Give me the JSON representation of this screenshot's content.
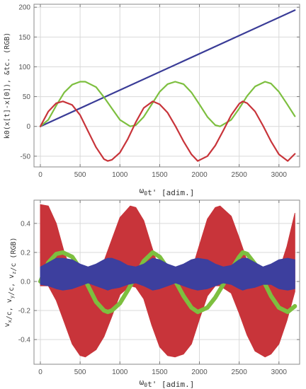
{
  "chart_data": [
    {
      "type": "line",
      "xlabel": "ω0t' [adim.]",
      "ylabel": "k0(x[t]-x[0]), &tc. (RGB)",
      "xlim": [
        -80,
        3260
      ],
      "ylim": [
        -68,
        205
      ],
      "xticks": [
        0,
        500,
        1000,
        1500,
        2000,
        2500,
        3000
      ],
      "yticks": [
        -50,
        0,
        50,
        100,
        150,
        200
      ],
      "grid": true,
      "series": [
        {
          "color": "#3a3c97",
          "x": [
            0,
            3200
          ],
          "y": [
            0,
            195
          ]
        },
        {
          "color": "#7dbf3f",
          "x": [
            0,
            100,
            200,
            300,
            400,
            500,
            565,
            700,
            800,
            900,
            1000,
            1130,
            1200,
            1300,
            1400,
            1500,
            1600,
            1695,
            1800,
            1900,
            2000,
            2100,
            2200,
            2260,
            2400,
            2500,
            2600,
            2700,
            2825,
            2900,
            3000,
            3100,
            3200
          ],
          "y": [
            0,
            11,
            35,
            57,
            70,
            75,
            75,
            66,
            49,
            30,
            11,
            0,
            2,
            16,
            37,
            58,
            71,
            75,
            71,
            57,
            37,
            16,
            2,
            0,
            11,
            30,
            51,
            67,
            75,
            72,
            58,
            38,
            17
          ]
        },
        {
          "color": "#c8343a",
          "x": [
            0,
            100,
            200,
            283,
            400,
            500,
            600,
            700,
            800,
            848,
            900,
            1000,
            1100,
            1200,
            1300,
            1413,
            1500,
            1600,
            1700,
            1800,
            1900,
            1978,
            2100,
            2200,
            2300,
            2400,
            2500,
            2545,
            2600,
            2700,
            2800,
            2900,
            3000,
            3110,
            3200
          ],
          "y": [
            0,
            25,
            39,
            42,
            36,
            19,
            -8,
            -35,
            -55,
            -58,
            -56,
            -44,
            -21,
            7,
            31,
            42,
            37,
            23,
            0,
            -25,
            -47,
            -58,
            -50,
            -32,
            -7,
            19,
            38,
            42,
            39,
            25,
            1,
            -25,
            -47,
            -58,
            -46
          ]
        }
      ]
    },
    {
      "type": "area",
      "xlabel": "ω0t' [adim.]",
      "ylabel": "vx/c, vy/c, vz/c (RGB)",
      "xlim": [
        -80,
        3260
      ],
      "ylim": [
        -0.57,
        0.56
      ],
      "xticks": [
        0,
        500,
        1000,
        1500,
        2000,
        2500,
        3000
      ],
      "yticks": [
        -0.4,
        -0.2,
        0.0,
        0.2,
        0.4
      ],
      "grid": true,
      "series": [
        {
          "color": "#c8343a",
          "x": [
            0,
            100,
            200,
            300,
            400,
            500,
            565,
            700,
            800,
            900,
            1000,
            1130,
            1200,
            1300,
            1400,
            1500,
            1600,
            1695,
            1800,
            1900,
            2000,
            2100,
            2200,
            2260,
            2400,
            2500,
            2600,
            2700,
            2825,
            2900,
            3000,
            3100,
            3200
          ],
          "upper": [
            0.53,
            0.52,
            0.4,
            0.2,
            0.06,
            -0.01,
            -0.02,
            0.04,
            0.14,
            0.29,
            0.44,
            0.52,
            0.51,
            0.42,
            0.24,
            0.07,
            -0.01,
            -0.02,
            0.0,
            0.07,
            0.25,
            0.43,
            0.51,
            0.52,
            0.45,
            0.3,
            0.14,
            0.03,
            -0.02,
            0.0,
            0.07,
            0.24,
            0.47
          ],
          "lower": [
            -0.03,
            -0.03,
            -0.13,
            -0.28,
            -0.43,
            -0.51,
            -0.52,
            -0.47,
            -0.38,
            -0.24,
            -0.09,
            -0.03,
            -0.04,
            -0.12,
            -0.3,
            -0.45,
            -0.51,
            -0.52,
            -0.5,
            -0.43,
            -0.26,
            -0.1,
            -0.03,
            -0.03,
            -0.08,
            -0.22,
            -0.37,
            -0.48,
            -0.52,
            -0.5,
            -0.43,
            -0.27,
            -0.07
          ]
        },
        {
          "color": "#7dbf3f",
          "x": [
            0,
            100,
            200,
            283,
            400,
            500,
            600,
            700,
            800,
            848,
            900,
            1000,
            1100,
            1200,
            1300,
            1413,
            1500,
            1600,
            1700,
            1800,
            1900,
            1978,
            2100,
            2200,
            2300,
            2400,
            2500,
            2545,
            2600,
            2700,
            2800,
            2900,
            3000,
            3110,
            3200
          ],
          "y": [
            0.0,
            0.13,
            0.19,
            0.2,
            0.17,
            0.09,
            -0.03,
            -0.14,
            -0.2,
            -0.21,
            -0.2,
            -0.15,
            -0.06,
            0.04,
            0.14,
            0.2,
            0.17,
            0.09,
            0.0,
            -0.1,
            -0.18,
            -0.21,
            -0.18,
            -0.11,
            -0.02,
            0.08,
            0.17,
            0.2,
            0.19,
            0.12,
            0.01,
            -0.1,
            -0.18,
            -0.21,
            -0.17
          ]
        },
        {
          "color": "#3d3f9e",
          "x": [
            0,
            100,
            200,
            283,
            400,
            500,
            600,
            700,
            800,
            848,
            900,
            1000,
            1100,
            1200,
            1300,
            1413,
            1500,
            1600,
            1700,
            1800,
            1900,
            1978,
            2100,
            2200,
            2300,
            2400,
            2500,
            2545,
            2600,
            2700,
            2800,
            2900,
            3000,
            3110,
            3200
          ],
          "upper": [
            0.1,
            0.13,
            0.16,
            0.16,
            0.15,
            0.12,
            0.1,
            0.12,
            0.15,
            0.16,
            0.16,
            0.14,
            0.11,
            0.1,
            0.12,
            0.16,
            0.15,
            0.12,
            0.1,
            0.12,
            0.15,
            0.16,
            0.15,
            0.12,
            0.1,
            0.11,
            0.15,
            0.16,
            0.16,
            0.13,
            0.1,
            0.12,
            0.15,
            0.16,
            0.15
          ],
          "lower": [
            -0.02,
            -0.03,
            -0.05,
            -0.06,
            -0.05,
            -0.03,
            -0.01,
            -0.03,
            -0.05,
            -0.06,
            -0.05,
            -0.04,
            -0.02,
            -0.01,
            -0.03,
            -0.06,
            -0.05,
            -0.03,
            -0.01,
            -0.03,
            -0.05,
            -0.06,
            -0.05,
            -0.03,
            -0.01,
            -0.02,
            -0.05,
            -0.06,
            -0.05,
            -0.04,
            -0.02,
            -0.02,
            -0.05,
            -0.06,
            -0.05
          ]
        }
      ]
    }
  ]
}
